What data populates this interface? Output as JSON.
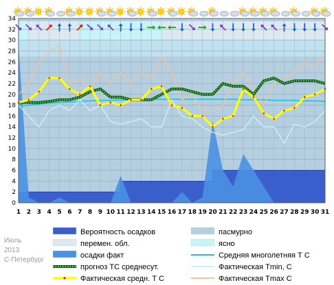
{
  "side_labels": {
    "month": "Июль",
    "year": "2013",
    "city": "С-Петербург"
  },
  "chart_data": {
    "type": "line",
    "x": [
      1,
      2,
      3,
      4,
      5,
      6,
      7,
      8,
      9,
      10,
      11,
      12,
      13,
      14,
      15,
      16,
      17,
      18,
      19,
      20,
      21,
      22,
      23,
      24,
      25,
      26,
      27,
      28,
      29,
      30,
      31
    ],
    "ylim": [
      0,
      34
    ],
    "yticks": [
      0,
      2,
      4,
      6,
      8,
      10,
      12,
      14,
      16,
      18,
      20,
      22,
      24,
      26,
      28,
      30,
      32,
      34
    ],
    "grid": true,
    "weather_icons": [
      "sun-cloud-icon",
      "sun-cloud-icon",
      "sun-icon",
      "sun-cloud-icon",
      "cloud-icon",
      "sun-cloud-icon",
      "sun-icon",
      "sun-icon",
      "sun-cloud-icon",
      "sun-cloud-icon",
      "sun-icon",
      "sun-cloud-icon",
      "sun-icon",
      "sun-cloud-icon",
      "sun-icon",
      "sun-cloud-icon",
      "sun-icon",
      "sun-cloud-icon",
      "cloud-icon",
      "sun-cloud-icon",
      "cloud-icon",
      "cloud-icon",
      "sun-cloud-icon",
      "sun-cloud-icon",
      "sun-cloud-icon",
      "sun-cloud-icon",
      "cloud-icon",
      "sun-cloud-icon",
      "cloud-icon",
      "sun-cloud-icon",
      "sun-cloud-icon"
    ],
    "wind_directions": [
      "SE",
      "SE",
      "NW",
      "NE",
      "N",
      "N",
      "NE",
      "SE",
      "SE",
      "NW",
      "N",
      "S",
      "S",
      "E",
      "W",
      "W",
      "S",
      "SE",
      "E",
      "S",
      "NW",
      "S",
      "S",
      "S",
      "NW",
      "NW",
      "N",
      "S",
      "S",
      "S",
      "SE"
    ],
    "sky_cover": [
      "ясно",
      "перемен. обл.",
      "перемен. обл.",
      "перемен. обл.",
      "перемен. обл.",
      "перемен. обл.",
      "ясно",
      "ясно",
      "ясно",
      "ясно",
      "ясно",
      "ясно",
      "ясно",
      "ясно",
      "перемен. обл.",
      "перемен. обл.",
      "перемен. обл.",
      "перемен. обл.",
      "перемен. обл.",
      "перемен. обл.",
      "перемен. обл.",
      "перемен. обл.",
      "перемен. обл.",
      "перемен. обл.",
      "перемен. обл.",
      "перемен. обл.",
      "перемен. обл.",
      "перемен. обл.",
      "перемен. обл.",
      "перемен. обл.",
      "перемен. обл."
    ],
    "series": [
      {
        "name": "Вероятность осадков",
        "kind": "area",
        "color": "#3a5fcd",
        "values": [
          2,
          2,
          2,
          2,
          2,
          2,
          2,
          2,
          2,
          2,
          4,
          4,
          4,
          4,
          4,
          4,
          4,
          4,
          4,
          6,
          6,
          6,
          6,
          6,
          6,
          6,
          6,
          6,
          6,
          6,
          6
        ]
      },
      {
        "name": "осадки факт",
        "kind": "area",
        "color": "#4a90e2",
        "values": [
          29,
          1,
          0,
          0,
          1,
          0,
          0,
          0,
          0,
          0,
          5,
          0,
          0,
          0,
          0,
          0,
          2,
          0,
          1,
          15,
          6,
          3,
          9,
          6,
          3,
          0,
          0,
          0,
          0,
          0,
          0
        ]
      },
      {
        "name": "Средняя многолетняя Т С",
        "kind": "line",
        "color": "#19c8e6",
        "values": [
          17.9,
          18.0,
          18.2,
          18.4,
          18.5,
          18.6,
          18.7,
          18.8,
          18.9,
          18.9,
          19.0,
          19.0,
          19.0,
          19.1,
          19.1,
          19.1,
          19.1,
          19.1,
          19.1,
          19.1,
          19.1,
          19.1,
          19.0,
          19.0,
          19.0,
          18.9,
          18.9,
          18.9,
          18.8,
          18.8,
          18.7
        ]
      },
      {
        "name": "Фактическая Tmin, С",
        "kind": "line",
        "color": "#c8f2f7",
        "values": [
          18,
          16,
          14,
          17,
          18,
          17,
          19,
          17,
          18,
          15,
          14.5,
          15,
          15.5,
          14,
          14,
          19,
          16,
          15.5,
          14,
          13,
          12.5,
          13,
          13.5,
          16,
          14,
          14,
          11,
          14.5,
          14,
          15,
          17
        ]
      },
      {
        "name": "Фактическая Tmax С",
        "kind": "line",
        "color": "#f5c29a",
        "values": [
          20,
          22,
          26,
          28,
          29,
          22,
          23,
          21,
          24,
          22,
          24,
          22,
          24,
          23,
          27,
          24,
          19,
          20,
          17,
          17,
          18,
          22,
          24,
          21,
          18,
          22,
          23,
          24,
          26,
          25,
          28
        ]
      },
      {
        "name": "прогноз ТС среднесут.",
        "kind": "dotted",
        "color": "#2c8a2c",
        "values": [
          18.5,
          18.5,
          18.5,
          18.7,
          19,
          19,
          19.5,
          20.5,
          21,
          19.5,
          19.5,
          19,
          19,
          19,
          20,
          21,
          21,
          20.5,
          20,
          20,
          22,
          21.5,
          21.5,
          20,
          22.5,
          23,
          22,
          22.5,
          22.5,
          22.5,
          22
        ]
      },
      {
        "name": "Фактическая средн. Т С",
        "kind": "line",
        "color": "#ffff00",
        "values": [
          18.5,
          19,
          20.5,
          23,
          23,
          21,
          20,
          21.5,
          18,
          18.5,
          18,
          19,
          19,
          21,
          21.5,
          18,
          17.5,
          16,
          16,
          14,
          15.5,
          16,
          21,
          19.5,
          16.5,
          15.5,
          17,
          17.5,
          19.5,
          20,
          21
        ]
      }
    ],
    "legend": [
      {
        "label": "Вероятность осадков",
        "swatch": "box",
        "color": "#3a5fcd"
      },
      {
        "label": "пасмурно",
        "swatch": "box",
        "color": "#b6cfe0"
      },
      {
        "label": "перемен. обл.",
        "swatch": "box",
        "color": "#dde9f1"
      },
      {
        "label": "ясно",
        "swatch": "box",
        "color": "#c7f3f9"
      },
      {
        "label": "осадки факт",
        "swatch": "box",
        "color": "#4a90e2"
      },
      {
        "label": "Средняя многолетняя Т С",
        "swatch": "line",
        "color": "#19c8e6"
      },
      {
        "label": "прогноз ТС среднесут.",
        "swatch": "dotted",
        "color": "#2c8a2c"
      },
      {
        "label": "Фактическая Tmin, С",
        "swatch": "line",
        "color": "#c8f2f7"
      },
      {
        "label": "Фактическая средн. Т С",
        "swatch": "thick",
        "color": "#ffff00"
      },
      {
        "label": "Фактическая Tmax С",
        "swatch": "line",
        "color": "#f5c29a"
      }
    ],
    "colors": {
      "plot_background_lower": "#b6cfe0",
      "plot_background_upper": "#c7f3f9",
      "band_partly_cloudy": "#dde9f1"
    }
  }
}
